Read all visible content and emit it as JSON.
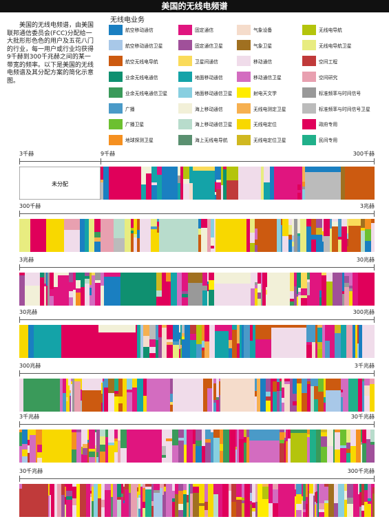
{
  "title": "美国的无线电频谱",
  "intro": "美国的无线电频谱，由美国联邦通信委员会(FCC)分配给一大批形形色色的用户及五花八门的行业，每一用户或行业均获得9千赫到300千兆赫之间的某一带宽的频率。以下是美国的无线电频谱及其分配方案的简化示意图。",
  "legend_title": "无线电业务",
  "legend": [
    {
      "label": "航空移动通信",
      "color": "#1a7fc1"
    },
    {
      "label": "固定通信",
      "color": "#e0157f"
    },
    {
      "label": "气象设备",
      "color": "#f5dccb"
    },
    {
      "label": "无线电导航",
      "color": "#b4c40c"
    },
    {
      "label": "航空移动通信卫星",
      "color": "#a8c8e8"
    },
    {
      "label": "固定通信卫星",
      "color": "#a0509a"
    },
    {
      "label": "气象卫星",
      "color": "#a07020"
    },
    {
      "label": "无线电导航卫星",
      "color": "#e8ec80"
    },
    {
      "label": "航空无线电导航",
      "color": "#cc5a10"
    },
    {
      "label": "卫星间通信",
      "color": "#fadb5a"
    },
    {
      "label": "移动通信",
      "color": "#f0dcea"
    },
    {
      "label": "空间工程",
      "color": "#c03a3a"
    },
    {
      "label": "业余无线电通信",
      "color": "#0f9070"
    },
    {
      "label": "地面移动通信",
      "color": "#14a3a8"
    },
    {
      "label": "移动通信卫星",
      "color": "#d36cc0"
    },
    {
      "label": "空间研究",
      "color": "#e8a0b0"
    },
    {
      "label": "业余无线电通信卫星",
      "color": "#3a9a5a"
    },
    {
      "label": "地面移动通信卫星",
      "color": "#88cfe0"
    },
    {
      "label": "射电天文学",
      "color": "#ffec00"
    },
    {
      "label": "标准频率与时间信号",
      "color": "#999999"
    },
    {
      "label": "广播",
      "color": "#4a9ac8"
    },
    {
      "label": "海上移动通信",
      "color": "#f2f0d8"
    },
    {
      "label": "无线电测定卫星",
      "color": "#f6b050"
    },
    {
      "label": "标准频率与时间信号卫星",
      "color": "#bbbbbb"
    },
    {
      "label": "广播卫星",
      "color": "#6cc030"
    },
    {
      "label": "海上移动通信卫星",
      "color": "#b8dccc"
    },
    {
      "label": "无线电定位",
      "color": "#f8d800"
    },
    {
      "label": "政府专用",
      "color": "#e0005a"
    },
    {
      "label": "地球探测卫星",
      "color": "#f59020"
    },
    {
      "label": "海上无线电导航",
      "color": "#5a9070"
    },
    {
      "label": "无线电定位卫星",
      "color": "#d0b820"
    },
    {
      "label": "民间专用",
      "color": "#20b08a"
    }
  ],
  "bands": [
    {
      "left": "3千赫",
      "mid": "9千赫",
      "right": "300千赫",
      "unallocated": "未分配"
    },
    {
      "left": "300千赫",
      "right": "3兆赫"
    },
    {
      "left": "3兆赫",
      "right": "30兆赫"
    },
    {
      "left": "30兆赫",
      "right": "300兆赫"
    },
    {
      "left": "300兆赫",
      "right": "3千兆赫"
    },
    {
      "left": "3千兆赫",
      "right": "30千兆赫"
    },
    {
      "left": "30千兆赫",
      "right": "300千兆赫"
    }
  ],
  "chart_data": {
    "type": "heatmap",
    "title": "美国的无线电频谱",
    "rows": [
      "3千赫–300千赫",
      "300千赫–3兆赫",
      "3兆赫–30兆赫",
      "30兆赫–300兆赫",
      "300兆赫–3千兆赫",
      "3千兆赫–30千兆赫",
      "30千兆赫–300千兆赫"
    ],
    "legend_title": "无线电业务",
    "unallocated_range": [
      "3千赫",
      "9千赫"
    ]
  }
}
